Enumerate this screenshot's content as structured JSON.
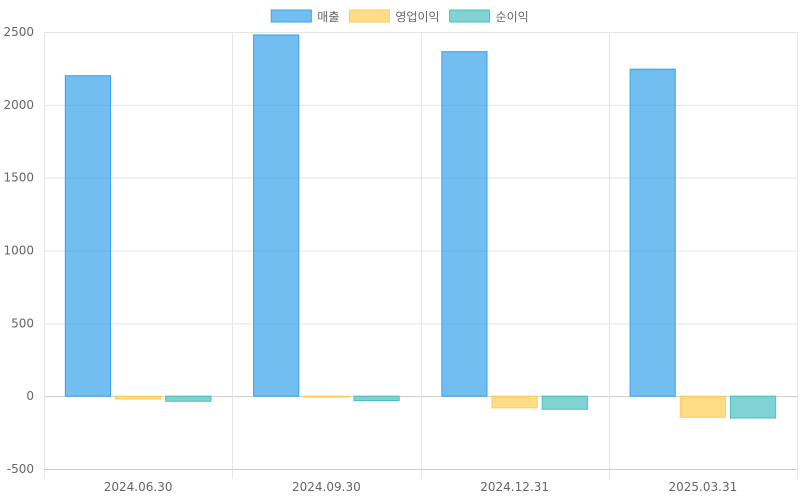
{
  "chart_data": {
    "type": "bar",
    "categories": [
      "2024.06.30",
      "2024.09.30",
      "2024.12.31",
      "2025.03.31"
    ],
    "series": [
      {
        "name": "매출",
        "values": [
          2200,
          2480,
          2365,
          2245
        ],
        "color": "#36a2eb"
      },
      {
        "name": "영업이익",
        "values": [
          -20,
          -5,
          -80,
          -145
        ],
        "color": "#ffcd56"
      },
      {
        "name": "순이익",
        "values": [
          -35,
          -30,
          -90,
          -150
        ],
        "color": "#4bc0c0"
      }
    ],
    "ylim": [
      -500,
      2500
    ],
    "yticks": [
      -500,
      0,
      500,
      1000,
      1500,
      2000,
      2500
    ],
    "grid": true,
    "legend": "top-center",
    "title": "",
    "xlabel": "",
    "ylabel": ""
  }
}
